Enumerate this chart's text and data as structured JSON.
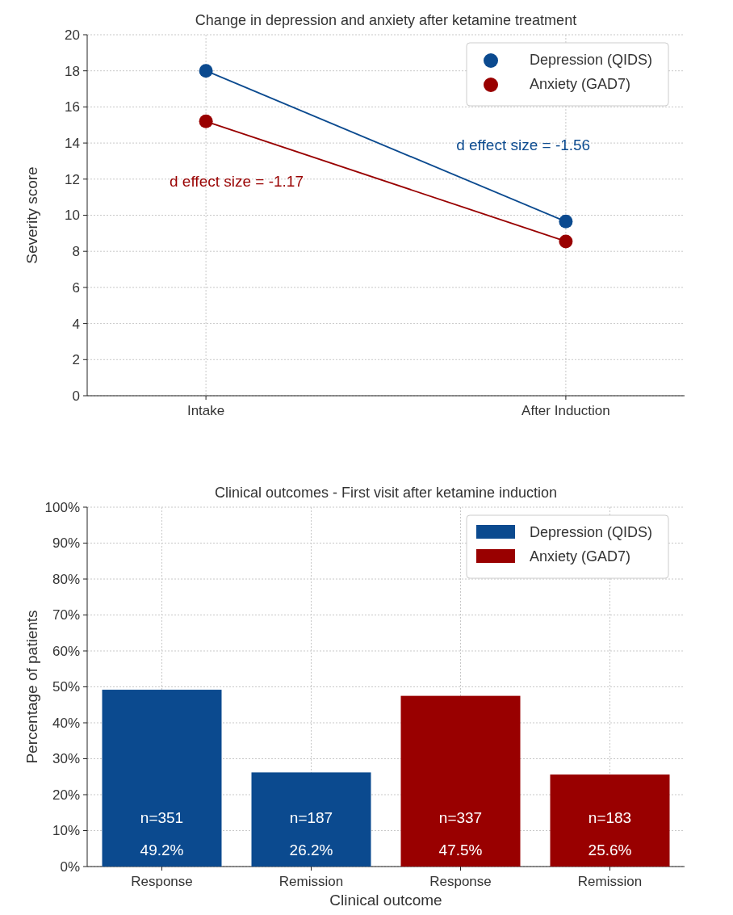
{
  "chart_data": [
    {
      "type": "line",
      "title": "Change in depression and anxiety after ketamine treatment",
      "ylabel": "Severity score",
      "categories": [
        "Intake",
        "After Induction"
      ],
      "series": [
        {
          "name": "Depression (QIDS)",
          "color": "#0b4a8f",
          "values": [
            18.0,
            9.65
          ]
        },
        {
          "name": "Anxiety (GAD7)",
          "color": "#990000",
          "values": [
            15.2,
            8.55
          ]
        }
      ],
      "annotations": [
        "d effect size = -1.56",
        "d effect size = -1.17"
      ],
      "ylim": [
        0,
        20
      ],
      "yticks": [
        0,
        2,
        4,
        6,
        8,
        10,
        12,
        14,
        16,
        18,
        20
      ],
      "grid": true,
      "legend": "top right",
      "marker": "circle"
    },
    {
      "type": "bar",
      "title": "Clinical outcomes - First visit after ketamine induction",
      "xlabel": "Clinical outcome",
      "ylabel": "Percentage of patients",
      "categories": [
        "Response",
        "Remission",
        "Response",
        "Remission"
      ],
      "series": [
        {
          "name": "Depression (QIDS)",
          "color": "#0b4a8f",
          "values": [
            49.2,
            26.2,
            null,
            null
          ],
          "value_labels": [
            "n=351\n49.2%",
            "n=187\n26.2%",
            null,
            null
          ]
        },
        {
          "name": "Anxiety (GAD7)",
          "color": "#990000",
          "values": [
            null,
            null,
            47.5,
            25.6
          ],
          "value_labels": [
            null,
            null,
            "n=337\n47.5%",
            "n=183\n25.6%"
          ]
        }
      ],
      "ylim": [
        0,
        100
      ],
      "yticks": [
        {
          "value": 0,
          "label": "0%"
        },
        {
          "value": 10,
          "label": "10%"
        },
        {
          "value": 20,
          "label": "20%"
        },
        {
          "value": 30,
          "label": "30%"
        },
        {
          "value": 40,
          "label": "40%"
        },
        {
          "value": 50,
          "label": "50%"
        },
        {
          "value": 60,
          "label": "60%"
        },
        {
          "value": 70,
          "label": "70%"
        },
        {
          "value": 80,
          "label": "80%"
        },
        {
          "value": 90,
          "label": "90%"
        },
        {
          "value": 100,
          "label": "100%"
        }
      ],
      "grid": true,
      "legend": "top right"
    }
  ]
}
